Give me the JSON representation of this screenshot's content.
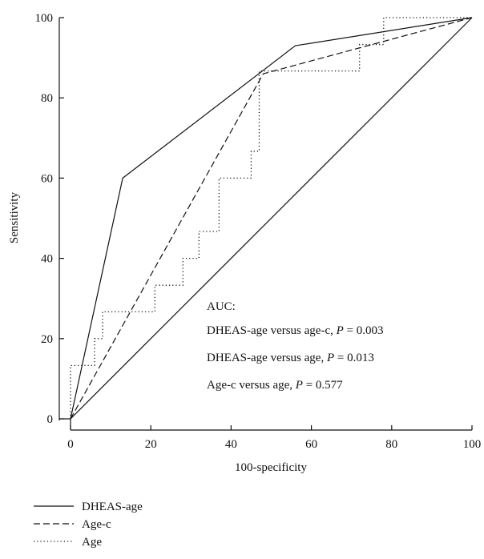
{
  "chart_data": {
    "type": "line",
    "xlabel": "100-specificity",
    "ylabel": "Sensitivity",
    "xlim": [
      0,
      100
    ],
    "ylim": [
      0,
      100
    ],
    "x_ticks": [
      "0",
      "20",
      "40",
      "60",
      "80",
      "100"
    ],
    "y_ticks": [
      "0",
      "20",
      "40",
      "60",
      "80",
      "100"
    ],
    "grid": false,
    "legend_position": "bottom-left",
    "series": [
      {
        "name": "DHEAS-age",
        "style": "solid",
        "points": [
          [
            0,
            0
          ],
          [
            13,
            60
          ],
          [
            56,
            93
          ],
          [
            100,
            100
          ]
        ]
      },
      {
        "name": "Age-c",
        "style": "dashed",
        "points": [
          [
            0,
            0
          ],
          [
            48,
            86
          ],
          [
            100,
            100
          ]
        ]
      },
      {
        "name": "Age",
        "style": "dotted",
        "points": [
          [
            0,
            0
          ],
          [
            0,
            13.3
          ],
          [
            6,
            13.3
          ],
          [
            6,
            20
          ],
          [
            8,
            20
          ],
          [
            8,
            26.7
          ],
          [
            21,
            26.7
          ],
          [
            21,
            33.3
          ],
          [
            28,
            33.3
          ],
          [
            28,
            40
          ],
          [
            32,
            40
          ],
          [
            32,
            46.7
          ],
          [
            37,
            46.7
          ],
          [
            37,
            60
          ],
          [
            45,
            60
          ],
          [
            45,
            66.7
          ],
          [
            47,
            66.7
          ],
          [
            47,
            86.7
          ],
          [
            72,
            86.7
          ],
          [
            72,
            93.3
          ],
          [
            78,
            93.3
          ],
          [
            78,
            100
          ],
          [
            100,
            100
          ]
        ]
      },
      {
        "name": "",
        "style": "solid",
        "points": [
          [
            0,
            0
          ],
          [
            100,
            100
          ]
        ]
      }
    ],
    "annotations": {
      "heading": "AUC:",
      "lines": [
        {
          "text": "DHEAS-age versus age-c, ",
          "p": "P",
          "value": " = 0.003"
        },
        {
          "text": "DHEAS-age versus age, ",
          "p": "P",
          "value": " = 0.013"
        },
        {
          "text": "Age-c versus age, ",
          "p": "P",
          "value": " = 0.577"
        }
      ]
    }
  }
}
